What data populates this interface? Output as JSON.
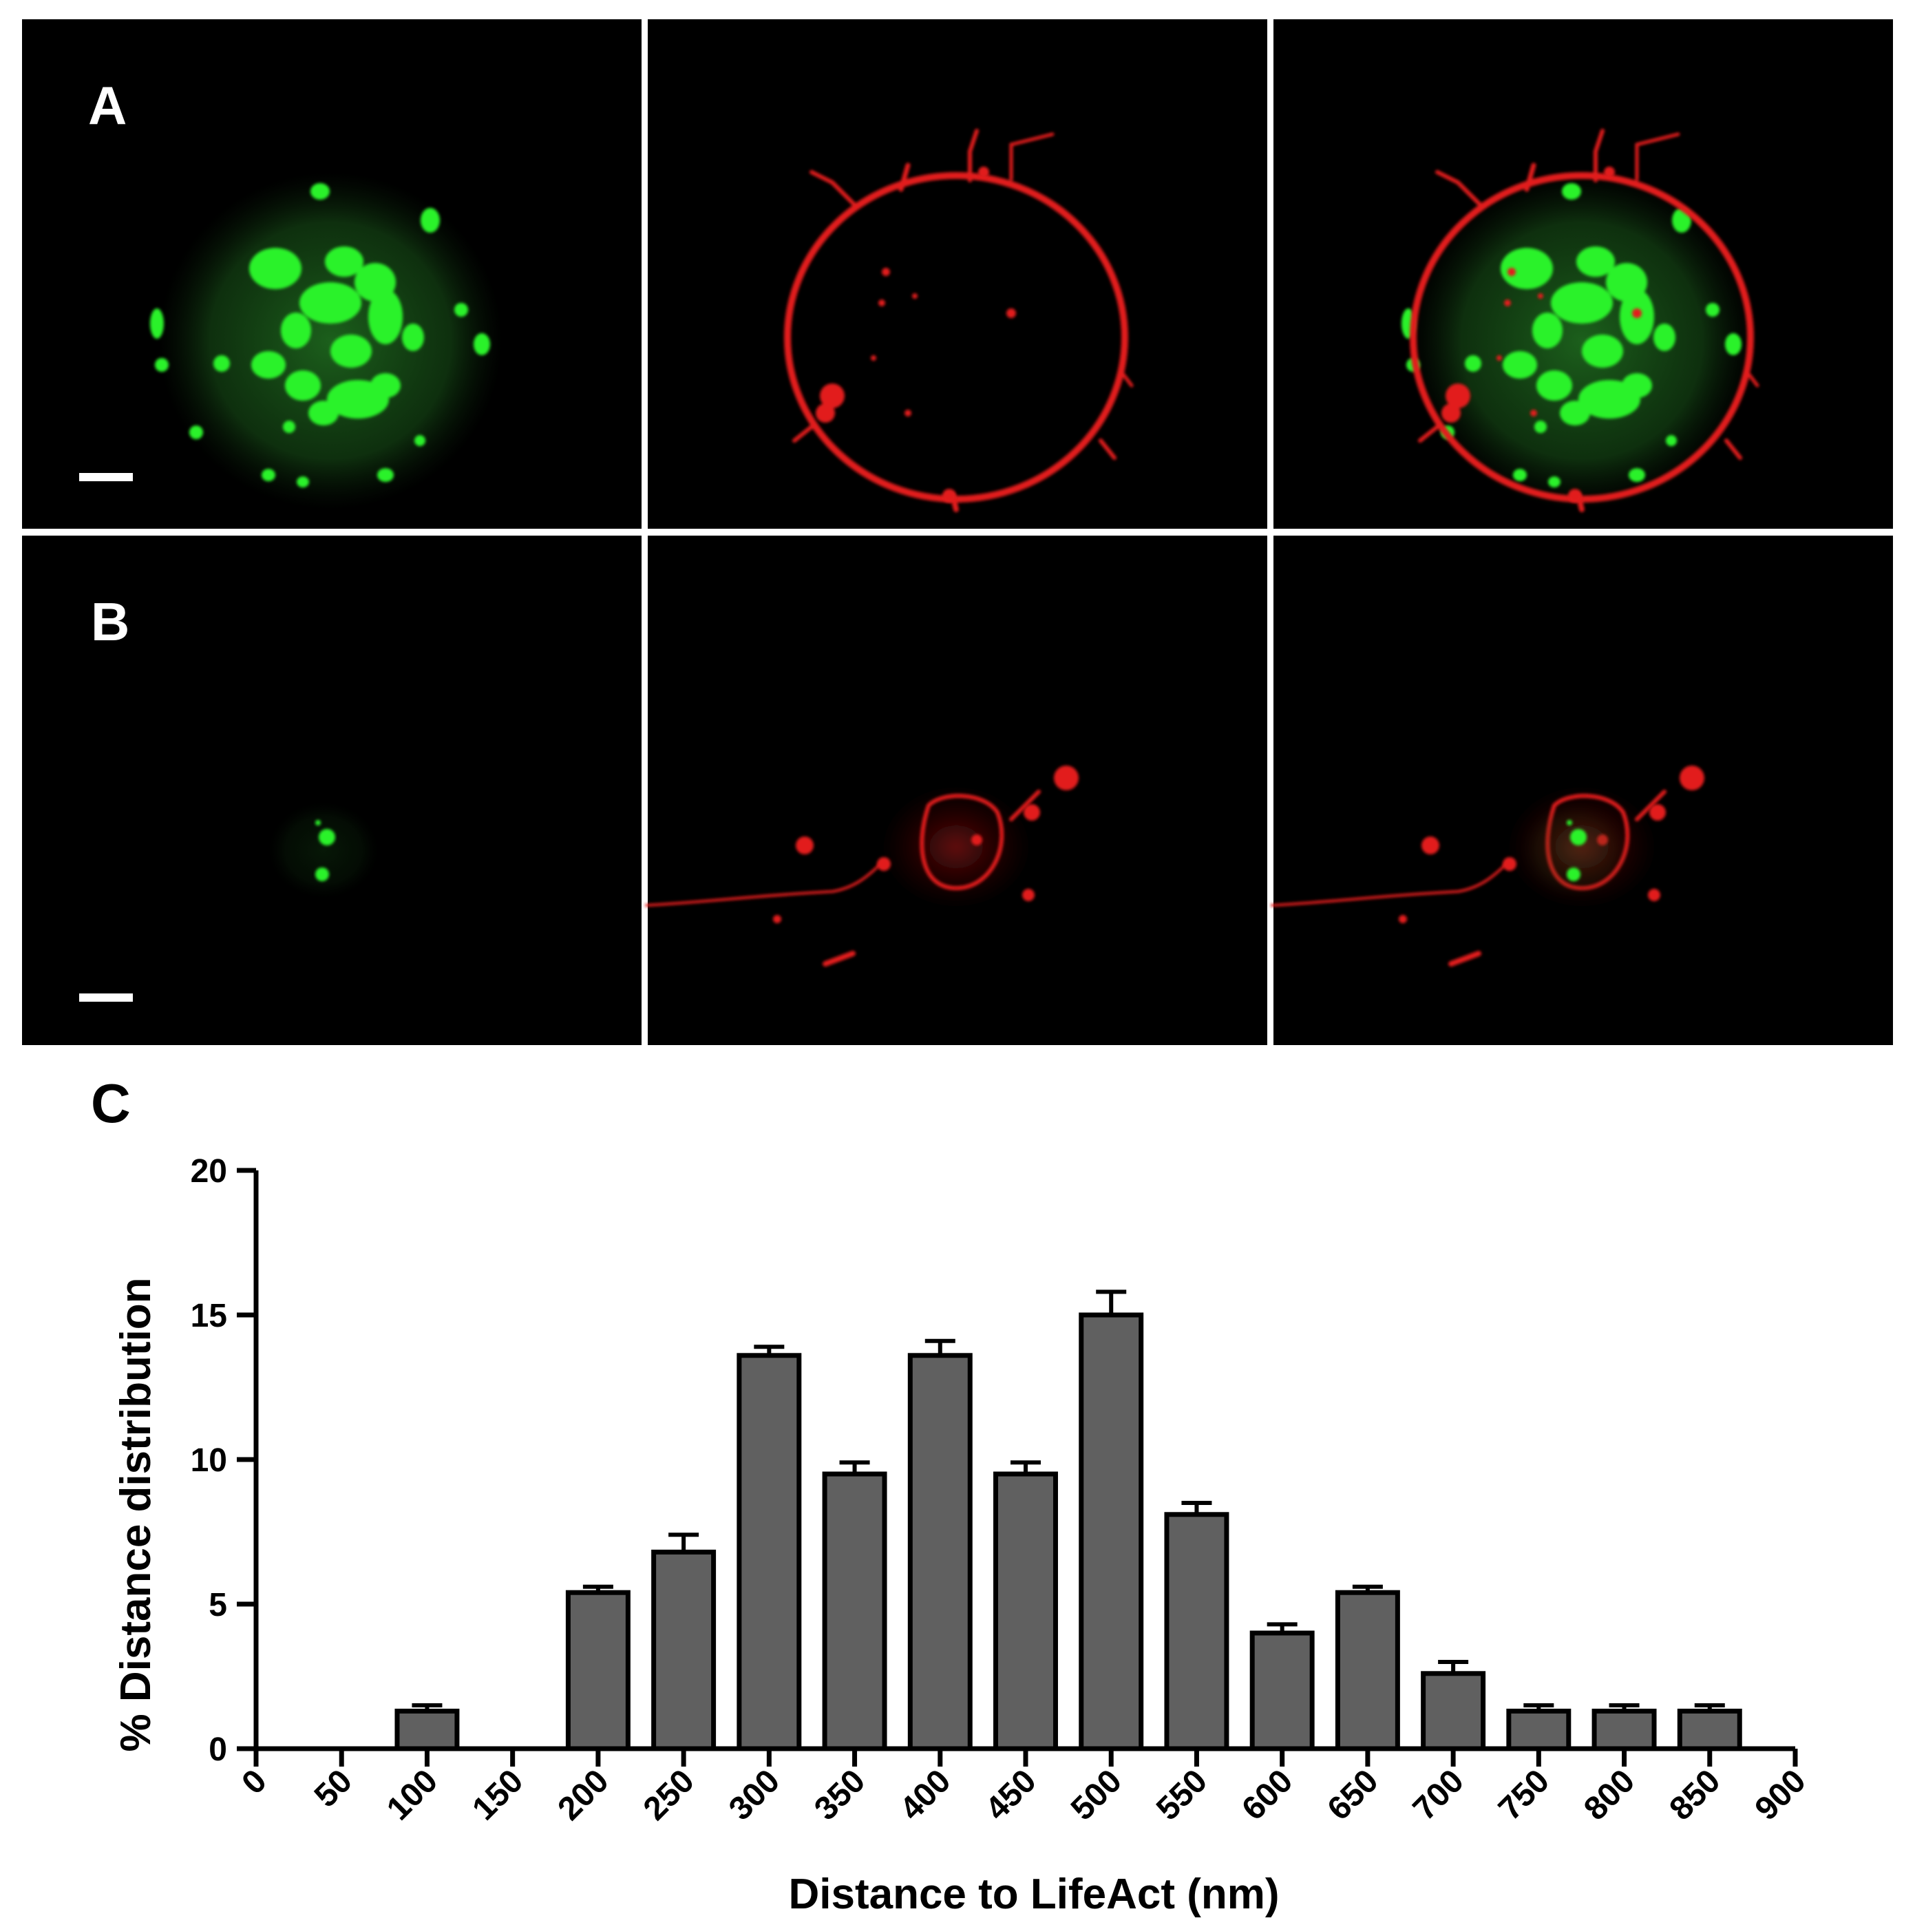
{
  "panels": {
    "a_label": "A",
    "b_label": "B",
    "c_label": "C",
    "rows": [
      {
        "label": "A",
        "cells": [
          "green",
          "red",
          "merge"
        ]
      },
      {
        "label": "B",
        "cells": [
          "green",
          "red",
          "merge"
        ]
      }
    ],
    "colors": {
      "green": "#22e022",
      "red": "#e01818",
      "background": "#000000",
      "separator": "#ffffff"
    }
  },
  "chart_data": {
    "type": "bar",
    "xlabel": "Distance to LifeAct (nm)",
    "ylabel": "% Distance distribution",
    "ylim": [
      0,
      20
    ],
    "xlim": [
      0,
      900
    ],
    "yticks": [
      0,
      5,
      10,
      15,
      20
    ],
    "xticks": [
      0,
      50,
      100,
      150,
      200,
      250,
      300,
      350,
      400,
      450,
      500,
      550,
      600,
      650,
      700,
      750,
      800,
      850,
      900
    ],
    "bars": [
      {
        "x": 100,
        "value": 1.3,
        "error": 0.2
      },
      {
        "x": 200,
        "value": 5.4,
        "error": 0.2
      },
      {
        "x": 250,
        "value": 6.8,
        "error": 0.6
      },
      {
        "x": 300,
        "value": 13.6,
        "error": 0.3
      },
      {
        "x": 350,
        "value": 9.5,
        "error": 0.4
      },
      {
        "x": 400,
        "value": 13.6,
        "error": 0.5
      },
      {
        "x": 450,
        "value": 9.5,
        "error": 0.4
      },
      {
        "x": 500,
        "value": 15.0,
        "error": 0.8
      },
      {
        "x": 550,
        "value": 8.1,
        "error": 0.4
      },
      {
        "x": 600,
        "value": 4.0,
        "error": 0.3
      },
      {
        "x": 650,
        "value": 5.4,
        "error": 0.2
      },
      {
        "x": 700,
        "value": 2.6,
        "error": 0.4
      },
      {
        "x": 750,
        "value": 1.3,
        "error": 0.2
      },
      {
        "x": 800,
        "value": 1.3,
        "error": 0.2
      },
      {
        "x": 850,
        "value": 1.3,
        "error": 0.2
      }
    ],
    "bar_color": "#606060",
    "grid": false
  }
}
